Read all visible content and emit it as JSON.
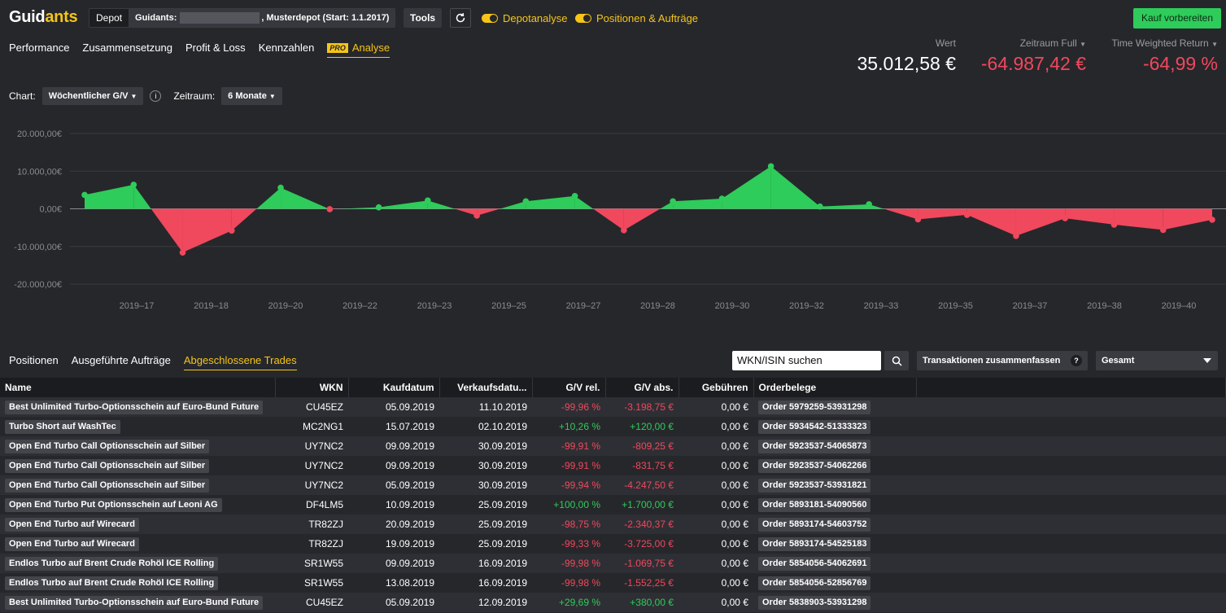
{
  "app": {
    "logo_main": "Guid",
    "logo_accent": "ants"
  },
  "topbar": {
    "depot_label": "Depot",
    "depot_selector_prefix": "Guidants:",
    "depot_selector_suffix": ", Musterdepot (Start: 1.1.2017)",
    "tools_label": "Tools",
    "toggle_depotanalyse": "Depotanalyse",
    "toggle_positionen": "Positionen & Aufträge",
    "kauf_label": "Kauf vorbereiten"
  },
  "tabs": [
    {
      "label": "Performance"
    },
    {
      "label": "Zusammensetzung"
    },
    {
      "label": "Profit & Loss"
    },
    {
      "label": "Kennzahlen"
    },
    {
      "label": "Analyse",
      "badge": "PRO",
      "active": true
    }
  ],
  "kpis": {
    "wert_label": "Wert",
    "wert_value": "35.012,58 €",
    "zeitraum_label": "Zeitraum Full",
    "zeitraum_value": "-64.987,42 €",
    "twr_label": "Time Weighted Return",
    "twr_value": "-64,99 %"
  },
  "chart_controls": {
    "chart_label": "Chart:",
    "chart_value": "Wöchentlicher G/V",
    "info": "i",
    "zeitraum_label": "Zeitraum:",
    "zeitraum_value": "6 Monate"
  },
  "chart_data": {
    "type": "area",
    "y_ticks": [
      "20.000,00€",
      "10.000,00€",
      "0,00€",
      "-10.000,00€",
      "-20.000,00€"
    ],
    "ylim": [
      -20000,
      20000
    ],
    "x_ticks": [
      "2019–17",
      "2019–18",
      "2019–20",
      "2019–22",
      "2019–23",
      "2019–25",
      "2019–27",
      "2019–28",
      "2019–30",
      "2019–32",
      "2019–33",
      "2019–35",
      "2019–37",
      "2019–38",
      "2019–40"
    ],
    "values": [
      3700,
      6400,
      -11600,
      -5800,
      5600,
      -100,
      400,
      2200,
      -1800,
      2000,
      3400,
      -5700,
      2000,
      2700,
      11300,
      600,
      1200,
      -2800,
      -1600,
      -7200,
      -2500,
      -4200,
      -5600,
      -2900
    ],
    "colors": {
      "positive": "#2ecc5a",
      "negative": "#f0485d"
    }
  },
  "lower_tabs": [
    {
      "label": "Positionen"
    },
    {
      "label": "Ausgeführte Aufträge"
    },
    {
      "label": "Abgeschlossene Trades",
      "active": true
    }
  ],
  "search": {
    "placeholder": "WKN/ISIN suchen"
  },
  "tx_button": {
    "label": "Transaktionen zusammenfassen",
    "help": "?"
  },
  "gesamt": {
    "label": "Gesamt"
  },
  "table": {
    "headers": [
      "Name",
      "WKN",
      "Kaufdatum",
      "Verkaufsdatu...",
      "G/V rel.",
      "G/V abs.",
      "Gebühren",
      "Orderbelege"
    ],
    "rows": [
      {
        "name": "Best Unlimited Turbo-Optionsschein auf Euro-Bund Future",
        "wkn": "CU45EZ",
        "kauf": "05.09.2019",
        "verkauf": "11.10.2019",
        "rel": "-99,96 %",
        "abs": "-3.198,75 €",
        "geb": "0,00 €",
        "order": "Order 5979259-53931298",
        "sign": "neg"
      },
      {
        "name": "Turbo Short auf WashTec",
        "wkn": "MC2NG1",
        "kauf": "15.07.2019",
        "verkauf": "02.10.2019",
        "rel": "+10,26 %",
        "abs": "+120,00 €",
        "geb": "0,00 €",
        "order": "Order 5934542-51333323",
        "sign": "pos"
      },
      {
        "name": "Open End Turbo Call Optionsschein auf Silber",
        "wkn": "UY7NC2",
        "kauf": "09.09.2019",
        "verkauf": "30.09.2019",
        "rel": "-99,91 %",
        "abs": "-809,25 €",
        "geb": "0,00 €",
        "order": "Order 5923537-54065873",
        "sign": "neg"
      },
      {
        "name": "Open End Turbo Call Optionsschein auf Silber",
        "wkn": "UY7NC2",
        "kauf": "09.09.2019",
        "verkauf": "30.09.2019",
        "rel": "-99,91 %",
        "abs": "-831,75 €",
        "geb": "0,00 €",
        "order": "Order 5923537-54062266",
        "sign": "neg"
      },
      {
        "name": "Open End Turbo Call Optionsschein auf Silber",
        "wkn": "UY7NC2",
        "kauf": "05.09.2019",
        "verkauf": "30.09.2019",
        "rel": "-99,94 %",
        "abs": "-4.247,50 €",
        "geb": "0,00 €",
        "order": "Order 5923537-53931821",
        "sign": "neg"
      },
      {
        "name": "Open End Turbo Put Optionsschein auf Leoni AG",
        "wkn": "DF4LM5",
        "kauf": "10.09.2019",
        "verkauf": "25.09.2019",
        "rel": "+100,00 %",
        "abs": "+1.700,00 €",
        "geb": "0,00 €",
        "order": "Order 5893181-54090560",
        "sign": "pos"
      },
      {
        "name": "Open End Turbo auf Wirecard",
        "wkn": "TR82ZJ",
        "kauf": "20.09.2019",
        "verkauf": "25.09.2019",
        "rel": "-98,75 %",
        "abs": "-2.340,37 €",
        "geb": "0,00 €",
        "order": "Order 5893174-54603752",
        "sign": "neg"
      },
      {
        "name": "Open End Turbo auf Wirecard",
        "wkn": "TR82ZJ",
        "kauf": "19.09.2019",
        "verkauf": "25.09.2019",
        "rel": "-99,33 %",
        "abs": "-3.725,00 €",
        "geb": "0,00 €",
        "order": "Order 5893174-54525183",
        "sign": "neg"
      },
      {
        "name": "Endlos Turbo auf Brent Crude Rohöl ICE Rolling",
        "wkn": "SR1W55",
        "kauf": "09.09.2019",
        "verkauf": "16.09.2019",
        "rel": "-99,98 %",
        "abs": "-1.069,75 €",
        "geb": "0,00 €",
        "order": "Order 5854056-54062691",
        "sign": "neg"
      },
      {
        "name": "Endlos Turbo auf Brent Crude Rohöl ICE Rolling",
        "wkn": "SR1W55",
        "kauf": "13.08.2019",
        "verkauf": "16.09.2019",
        "rel": "-99,98 %",
        "abs": "-1.552,25 €",
        "geb": "0,00 €",
        "order": "Order 5854056-52856769",
        "sign": "neg"
      },
      {
        "name": "Best Unlimited Turbo-Optionsschein auf Euro-Bund Future",
        "wkn": "CU45EZ",
        "kauf": "05.09.2019",
        "verkauf": "12.09.2019",
        "rel": "+29,69 %",
        "abs": "+380,00 €",
        "geb": "0,00 €",
        "order": "Order 5838903-53931298",
        "sign": "pos"
      }
    ]
  }
}
